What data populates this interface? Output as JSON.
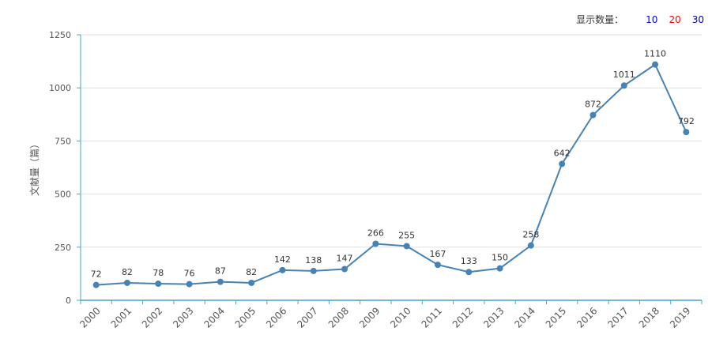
{
  "display_count": {
    "label": "显示数量：",
    "options": [
      {
        "value": "10",
        "color": "#0000ff"
      },
      {
        "value": "20",
        "color": "#ff0000"
      },
      {
        "value": "30",
        "color": "#0000aa"
      }
    ]
  },
  "chart_data": {
    "type": "line",
    "title": "",
    "xlabel": "",
    "ylabel": "文献量（篇）",
    "categories": [
      "2000",
      "2001",
      "2002",
      "2003",
      "2004",
      "2005",
      "2006",
      "2007",
      "2008",
      "2009",
      "2010",
      "2011",
      "2012",
      "2013",
      "2014",
      "2015",
      "2016",
      "2017",
      "2018",
      "2019"
    ],
    "series": [
      {
        "name": "文献量",
        "values": [
          72,
          82,
          78,
          76,
          87,
          82,
          142,
          138,
          147,
          266,
          255,
          167,
          133,
          150,
          258,
          642,
          872,
          1011,
          1110,
          792
        ]
      }
    ],
    "yticks": [
      0,
      250,
      500,
      750,
      1000,
      1250
    ],
    "ylim": [
      0,
      1250
    ],
    "grid": true,
    "colors": {
      "line": "#4682b4",
      "axis": "#4aa3c8",
      "grid": "#e0e0e0",
      "label": "#555555"
    }
  }
}
